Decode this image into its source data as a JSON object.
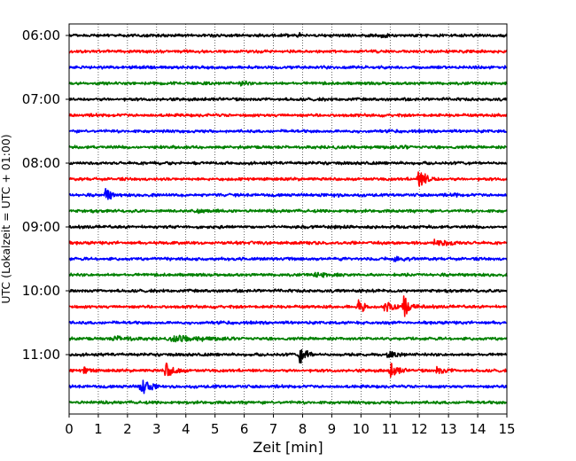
{
  "chart_data": {
    "type": "line",
    "title": "",
    "xlabel": "Zeit  [min]",
    "ylabel": "UTC (Lokalzeit = UTC + 01:00)",
    "xlim": [
      0,
      15
    ],
    "x_ticks": [
      0,
      1,
      2,
      3,
      4,
      5,
      6,
      7,
      8,
      9,
      10,
      11,
      12,
      13,
      14,
      15
    ],
    "y_tick_labels": [
      "06:00",
      "07:00",
      "08:00",
      "09:00",
      "10:00",
      "11:00"
    ],
    "trace_start_times": [
      "06:00",
      "06:15",
      "06:30",
      "06:45",
      "07:00",
      "07:15",
      "07:30",
      "07:45",
      "08:00",
      "08:15",
      "08:30",
      "08:45",
      "09:00",
      "09:15",
      "09:30",
      "09:45",
      "10:00",
      "10:15",
      "10:30",
      "10:45",
      "11:00",
      "11:15",
      "11:30",
      "11:45"
    ],
    "trace_colors": [
      "#000000",
      "#ff0000",
      "#0000ff",
      "#008000"
    ],
    "grid": "vertical dotted lines at each minute",
    "legend": "none",
    "events": [
      {
        "trace": 0,
        "x": 7.85,
        "amp": 0.45,
        "dur": 0.15
      },
      {
        "trace": 0,
        "x": 10.7,
        "amp": 0.25,
        "dur": 0.8
      },
      {
        "trace": 2,
        "x": 1.4,
        "amp": 0.2,
        "dur": 0.4
      },
      {
        "trace": 3,
        "x": 5.9,
        "amp": 0.5,
        "dur": 0.25
      },
      {
        "trace": 7,
        "x": 11.5,
        "amp": 0.3,
        "dur": 0.2
      },
      {
        "trace": 9,
        "x": 11.95,
        "amp": 1.2,
        "dur": 0.35
      },
      {
        "trace": 10,
        "x": 1.25,
        "amp": 1.0,
        "dur": 0.2
      },
      {
        "trace": 10,
        "x": 9.1,
        "amp": 0.5,
        "dur": 0.15
      },
      {
        "trace": 10,
        "x": 13.2,
        "amp": 0.35,
        "dur": 0.15
      },
      {
        "trace": 11,
        "x": 4.3,
        "amp": 0.3,
        "dur": 1.2
      },
      {
        "trace": 13,
        "x": 12.5,
        "amp": 0.45,
        "dur": 1.0
      },
      {
        "trace": 14,
        "x": 11.1,
        "amp": 0.35,
        "dur": 1.2
      },
      {
        "trace": 15,
        "x": 8.4,
        "amp": 0.3,
        "dur": 1.5
      },
      {
        "trace": 17,
        "x": 9.9,
        "amp": 1.3,
        "dur": 0.2
      },
      {
        "trace": 17,
        "x": 10.8,
        "amp": 0.55,
        "dur": 1.2
      },
      {
        "trace": 17,
        "x": 11.45,
        "amp": 1.5,
        "dur": 0.2
      },
      {
        "trace": 19,
        "x": 1.5,
        "amp": 0.35,
        "dur": 1.2
      },
      {
        "trace": 19,
        "x": 3.5,
        "amp": 0.45,
        "dur": 1.6
      },
      {
        "trace": 20,
        "x": 7.9,
        "amp": 1.2,
        "dur": 0.25
      },
      {
        "trace": 20,
        "x": 10.9,
        "amp": 0.4,
        "dur": 0.6
      },
      {
        "trace": 21,
        "x": 0.5,
        "amp": 0.6,
        "dur": 0.3
      },
      {
        "trace": 21,
        "x": 3.3,
        "amp": 1.0,
        "dur": 0.4
      },
      {
        "trace": 21,
        "x": 11.0,
        "amp": 1.0,
        "dur": 0.3
      },
      {
        "trace": 21,
        "x": 12.6,
        "amp": 0.5,
        "dur": 0.5
      },
      {
        "trace": 22,
        "x": 2.45,
        "amp": 1.3,
        "dur": 0.3
      },
      {
        "trace": 22,
        "x": 5.0,
        "amp": 0.3,
        "dur": 0.1
      }
    ]
  }
}
